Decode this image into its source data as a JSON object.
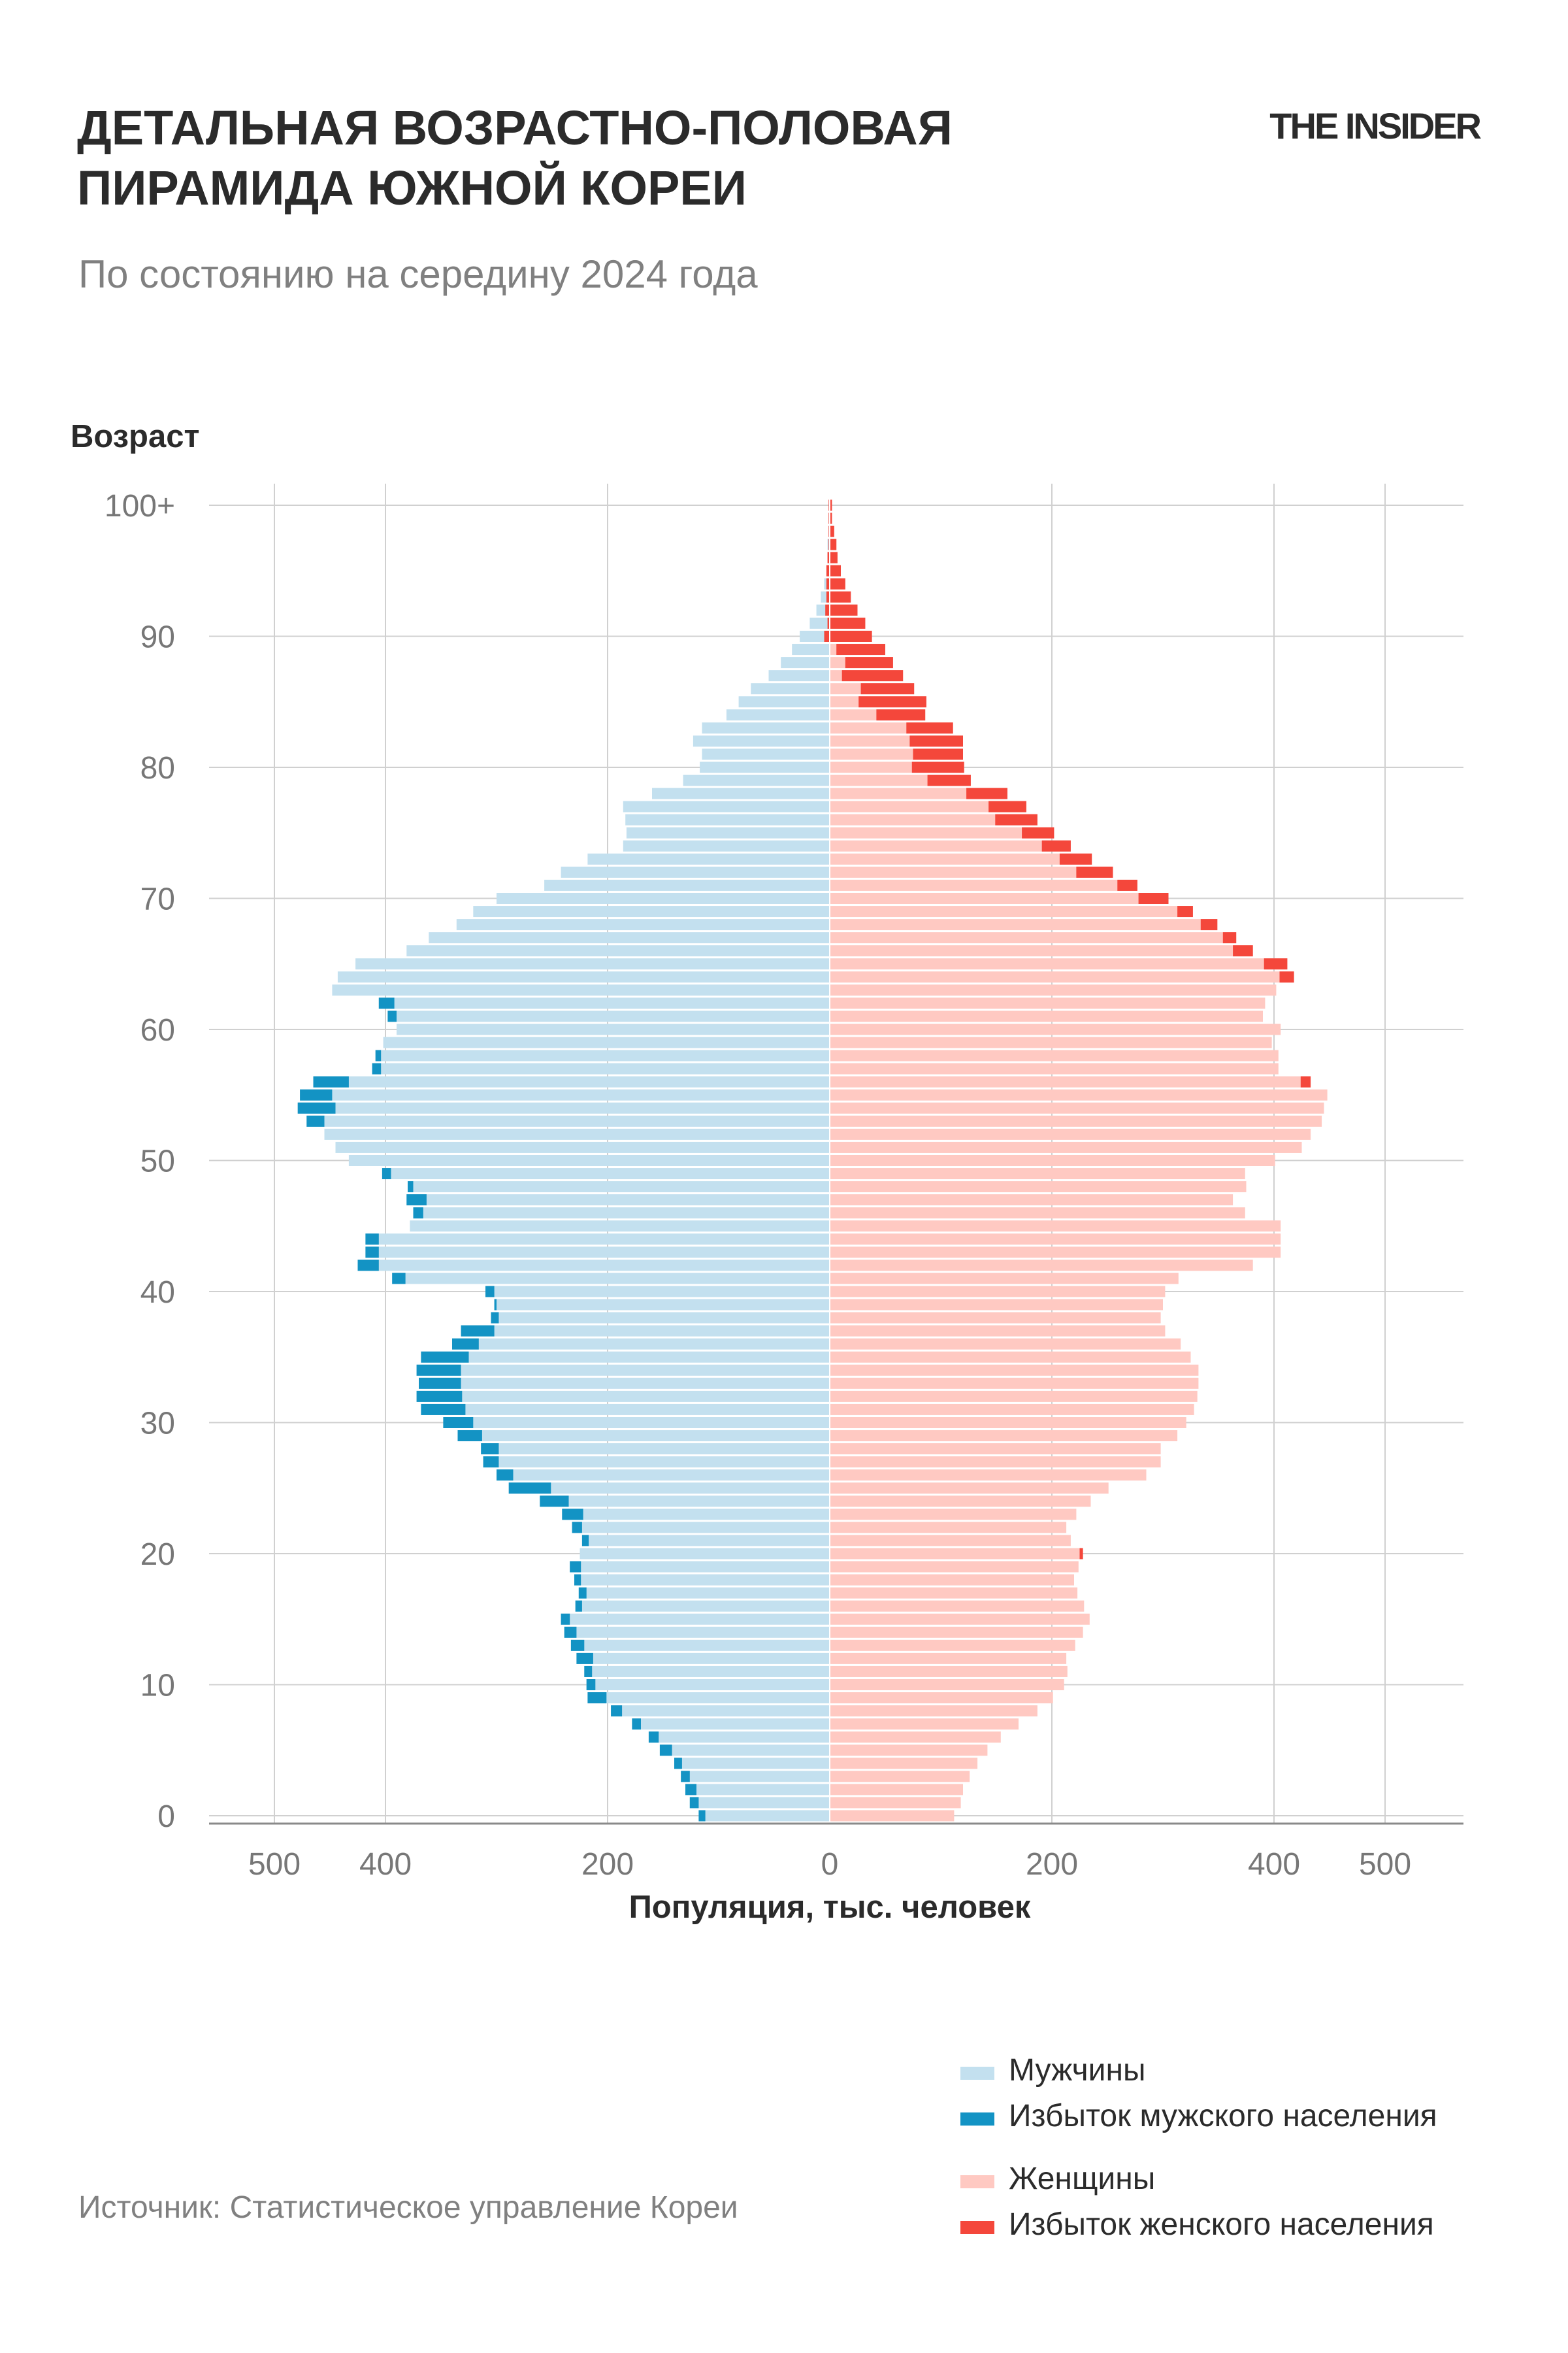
{
  "header": {
    "title_line1": "ДЕТАЛЬНАЯ ВОЗРАСТНО-ПОЛОВАЯ",
    "title_line2": "ПИРАМИДА ЮЖНОЙ КОРЕИ",
    "subtitle": "По состоянию на середину 2024 года",
    "brand": "THE INSIDER"
  },
  "source": "Источник: Статистическое управление Кореи",
  "legend": [
    {
      "label": "Мужчины",
      "color": "#c3e0ef"
    },
    {
      "label": "Избыток мужского населения",
      "color": "#1393c4"
    },
    {
      "label": "Женщины",
      "color": "#ffc9c2"
    },
    {
      "label": "Избыток женского населения",
      "color": "#f4473b"
    }
  ],
  "chart_data": {
    "type": "bar",
    "orientation": "horizontal-pyramid",
    "title": "ДЕТАЛЬНАЯ ВОЗРАСТНО-ПОЛОВАЯ ПИРАМИДА ЮЖНОЙ КОРЕИ",
    "subtitle": "По состоянию на середину 2024 года",
    "ylabel": "Возраст",
    "xlabel": "Популяция, тыс. человек",
    "y_tick_labels": [
      "0",
      "10",
      "20",
      "30",
      "40",
      "50",
      "60",
      "70",
      "80",
      "90",
      "100+"
    ],
    "x_tick_labels_left": [
      "500",
      "400",
      "200",
      "0"
    ],
    "x_tick_labels_right": [
      "200",
      "400",
      "500"
    ],
    "xlim": [
      -560,
      570
    ],
    "grid": true,
    "legend_position": "bottom-right",
    "categories": [
      "0",
      "1",
      "2",
      "3",
      "4",
      "5",
      "6",
      "7",
      "8",
      "9",
      "10",
      "11",
      "12",
      "13",
      "14",
      "15",
      "16",
      "17",
      "18",
      "19",
      "20",
      "21",
      "22",
      "23",
      "24",
      "25",
      "26",
      "27",
      "28",
      "29",
      "30",
      "31",
      "32",
      "33",
      "34",
      "35",
      "36",
      "37",
      "38",
      "39",
      "40",
      "41",
      "42",
      "43",
      "44",
      "45",
      "46",
      "47",
      "48",
      "49",
      "50",
      "51",
      "52",
      "53",
      "54",
      "55",
      "56",
      "57",
      "58",
      "59",
      "60",
      "61",
      "62",
      "63",
      "64",
      "65",
      "66",
      "67",
      "68",
      "69",
      "70",
      "71",
      "72",
      "73",
      "74",
      "75",
      "76",
      "77",
      "78",
      "79",
      "80",
      "81",
      "82",
      "83",
      "84",
      "85",
      "86",
      "87",
      "88",
      "89",
      "90",
      "91",
      "92",
      "93",
      "94",
      "95",
      "96",
      "97",
      "98",
      "99",
      "100+"
    ],
    "series": [
      {
        "name": "Мужчины",
        "color": "#c3e0ef",
        "values": [
          118,
          126,
          130,
          134,
          140,
          153,
          163,
          178,
          197,
          218,
          219,
          221,
          228,
          233,
          239,
          242,
          229,
          226,
          230,
          234,
          225,
          223,
          232,
          241,
          261,
          289,
          300,
          312,
          314,
          335,
          348,
          368,
          372,
          370,
          372,
          368,
          340,
          332,
          305,
          302,
          310,
          394,
          425,
          418,
          418,
          378,
          375,
          381,
          380,
          403,
          433,
          445,
          455,
          471,
          479,
          477,
          465,
          412,
          409,
          402,
          390,
          398,
          406,
          448,
          443,
          427,
          381,
          361,
          336,
          321,
          300,
          257,
          242,
          218,
          186,
          183,
          184,
          186,
          160,
          132,
          117,
          115,
          123,
          115,
          93,
          82,
          71,
          55,
          44,
          34,
          27,
          18,
          12,
          8,
          5,
          3,
          2,
          2,
          1,
          1,
          1
        ]
      },
      {
        "name": "Женщины",
        "color": "#ffc9c2",
        "values": [
          112,
          118,
          120,
          126,
          133,
          142,
          154,
          170,
          187,
          201,
          211,
          214,
          213,
          221,
          228,
          234,
          229,
          223,
          220,
          224,
          228,
          217,
          213,
          222,
          235,
          251,
          285,
          298,
          298,
          313,
          321,
          328,
          331,
          332,
          332,
          325,
          316,
          302,
          298,
          300,
          302,
          314,
          381,
          406,
          406,
          406,
          374,
          363,
          375,
          374,
          401,
          425,
          433,
          443,
          445,
          448,
          433,
          404,
          404,
          398,
          406,
          390,
          392,
          402,
          418,
          412,
          381,
          366,
          349,
          327,
          305,
          277,
          255,
          236,
          217,
          202,
          187,
          177,
          160,
          127,
          121,
          120,
          120,
          111,
          86,
          87,
          76,
          66,
          57,
          50,
          38,
          32,
          25,
          19,
          14,
          10,
          7,
          6,
          4,
          2,
          2
        ]
      },
      {
        "name": "Избыток мужского населения",
        "color": "#1393c4",
        "values": [
          6,
          8,
          10,
          8,
          7,
          11,
          9,
          8,
          10,
          17,
          8,
          7,
          15,
          12,
          11,
          8,
          6,
          7,
          6,
          10,
          0,
          6,
          9,
          19,
          26,
          38,
          15,
          14,
          16,
          22,
          27,
          40,
          41,
          38,
          40,
          43,
          24,
          30,
          7,
          2,
          8,
          12,
          19,
          12,
          12,
          0,
          9,
          18,
          5,
          8,
          0,
          0,
          0,
          16,
          34,
          29,
          32,
          8,
          5,
          0,
          0,
          8,
          14,
          0,
          0,
          0,
          0,
          0,
          0,
          0,
          0,
          0,
          0,
          0,
          0,
          0,
          0,
          0,
          0,
          0,
          0,
          0,
          0,
          0,
          0,
          0,
          0,
          0,
          0,
          0,
          0,
          0,
          0,
          0,
          0,
          0,
          0,
          0,
          0,
          0,
          0
        ]
      },
      {
        "name": "Избыток женского населения",
        "color": "#f4473b",
        "values": [
          0,
          0,
          0,
          0,
          0,
          0,
          0,
          0,
          0,
          0,
          0,
          0,
          0,
          0,
          0,
          0,
          0,
          0,
          0,
          0,
          3,
          0,
          0,
          0,
          0,
          0,
          0,
          0,
          0,
          0,
          0,
          0,
          0,
          0,
          0,
          0,
          0,
          0,
          0,
          0,
          0,
          0,
          0,
          0,
          0,
          0,
          0,
          0,
          0,
          0,
          0,
          0,
          0,
          0,
          0,
          0,
          9,
          0,
          0,
          0,
          0,
          0,
          0,
          0,
          13,
          21,
          18,
          12,
          15,
          14,
          27,
          18,
          33,
          29,
          26,
          29,
          38,
          34,
          37,
          39,
          47,
          45,
          48,
          42,
          44,
          61,
          48,
          55,
          43,
          44,
          43,
          34,
          29,
          22,
          17,
          13,
          9,
          7,
          5,
          3,
          3
        ]
      }
    ]
  }
}
